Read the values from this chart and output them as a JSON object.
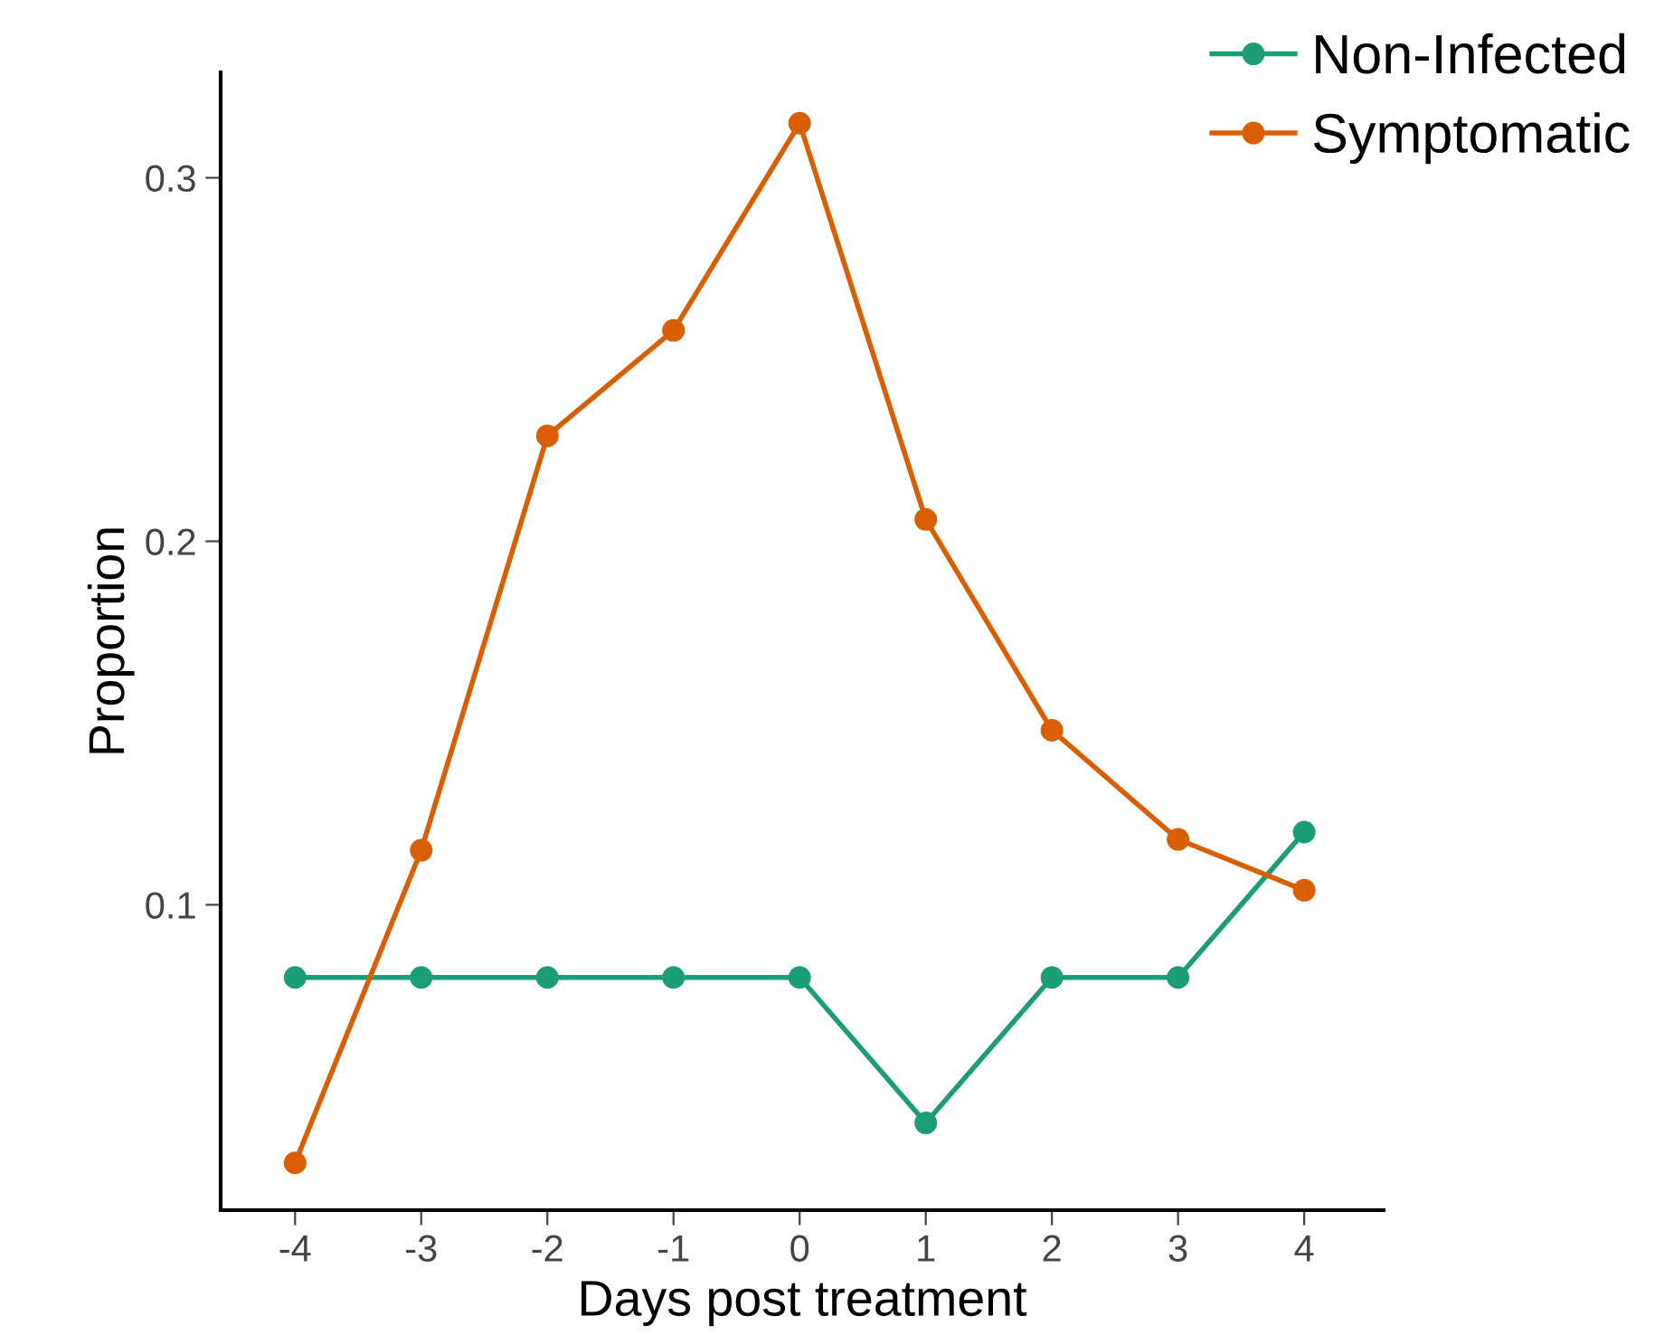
{
  "chart_data": {
    "type": "line",
    "xlabel": "Days post treatment",
    "ylabel": "Proportion",
    "x": [
      -4,
      -3,
      -2,
      -1,
      0,
      1,
      2,
      3,
      4
    ],
    "series": [
      {
        "name": "Non-Infected",
        "color": "#1b9e77",
        "values": [
          0.08,
          0.08,
          0.08,
          0.08,
          0.08,
          0.04,
          0.08,
          0.08,
          0.12
        ]
      },
      {
        "name": "Symptomatic",
        "color": "#d95f02",
        "values": [
          0.029,
          0.115,
          0.229,
          0.258,
          0.315,
          0.206,
          0.148,
          0.118,
          0.104
        ]
      }
    ],
    "xlim": [
      -4.59,
      4.63
    ],
    "ylim": [
      0.016,
      0.329
    ],
    "xticks": [
      -4,
      -3,
      -2,
      -1,
      0,
      1,
      2,
      3,
      4
    ],
    "yticks": [
      0.1,
      0.2,
      0.3
    ],
    "grid": false,
    "legend": "top right",
    "marker": "circle",
    "line_style": "solid"
  }
}
